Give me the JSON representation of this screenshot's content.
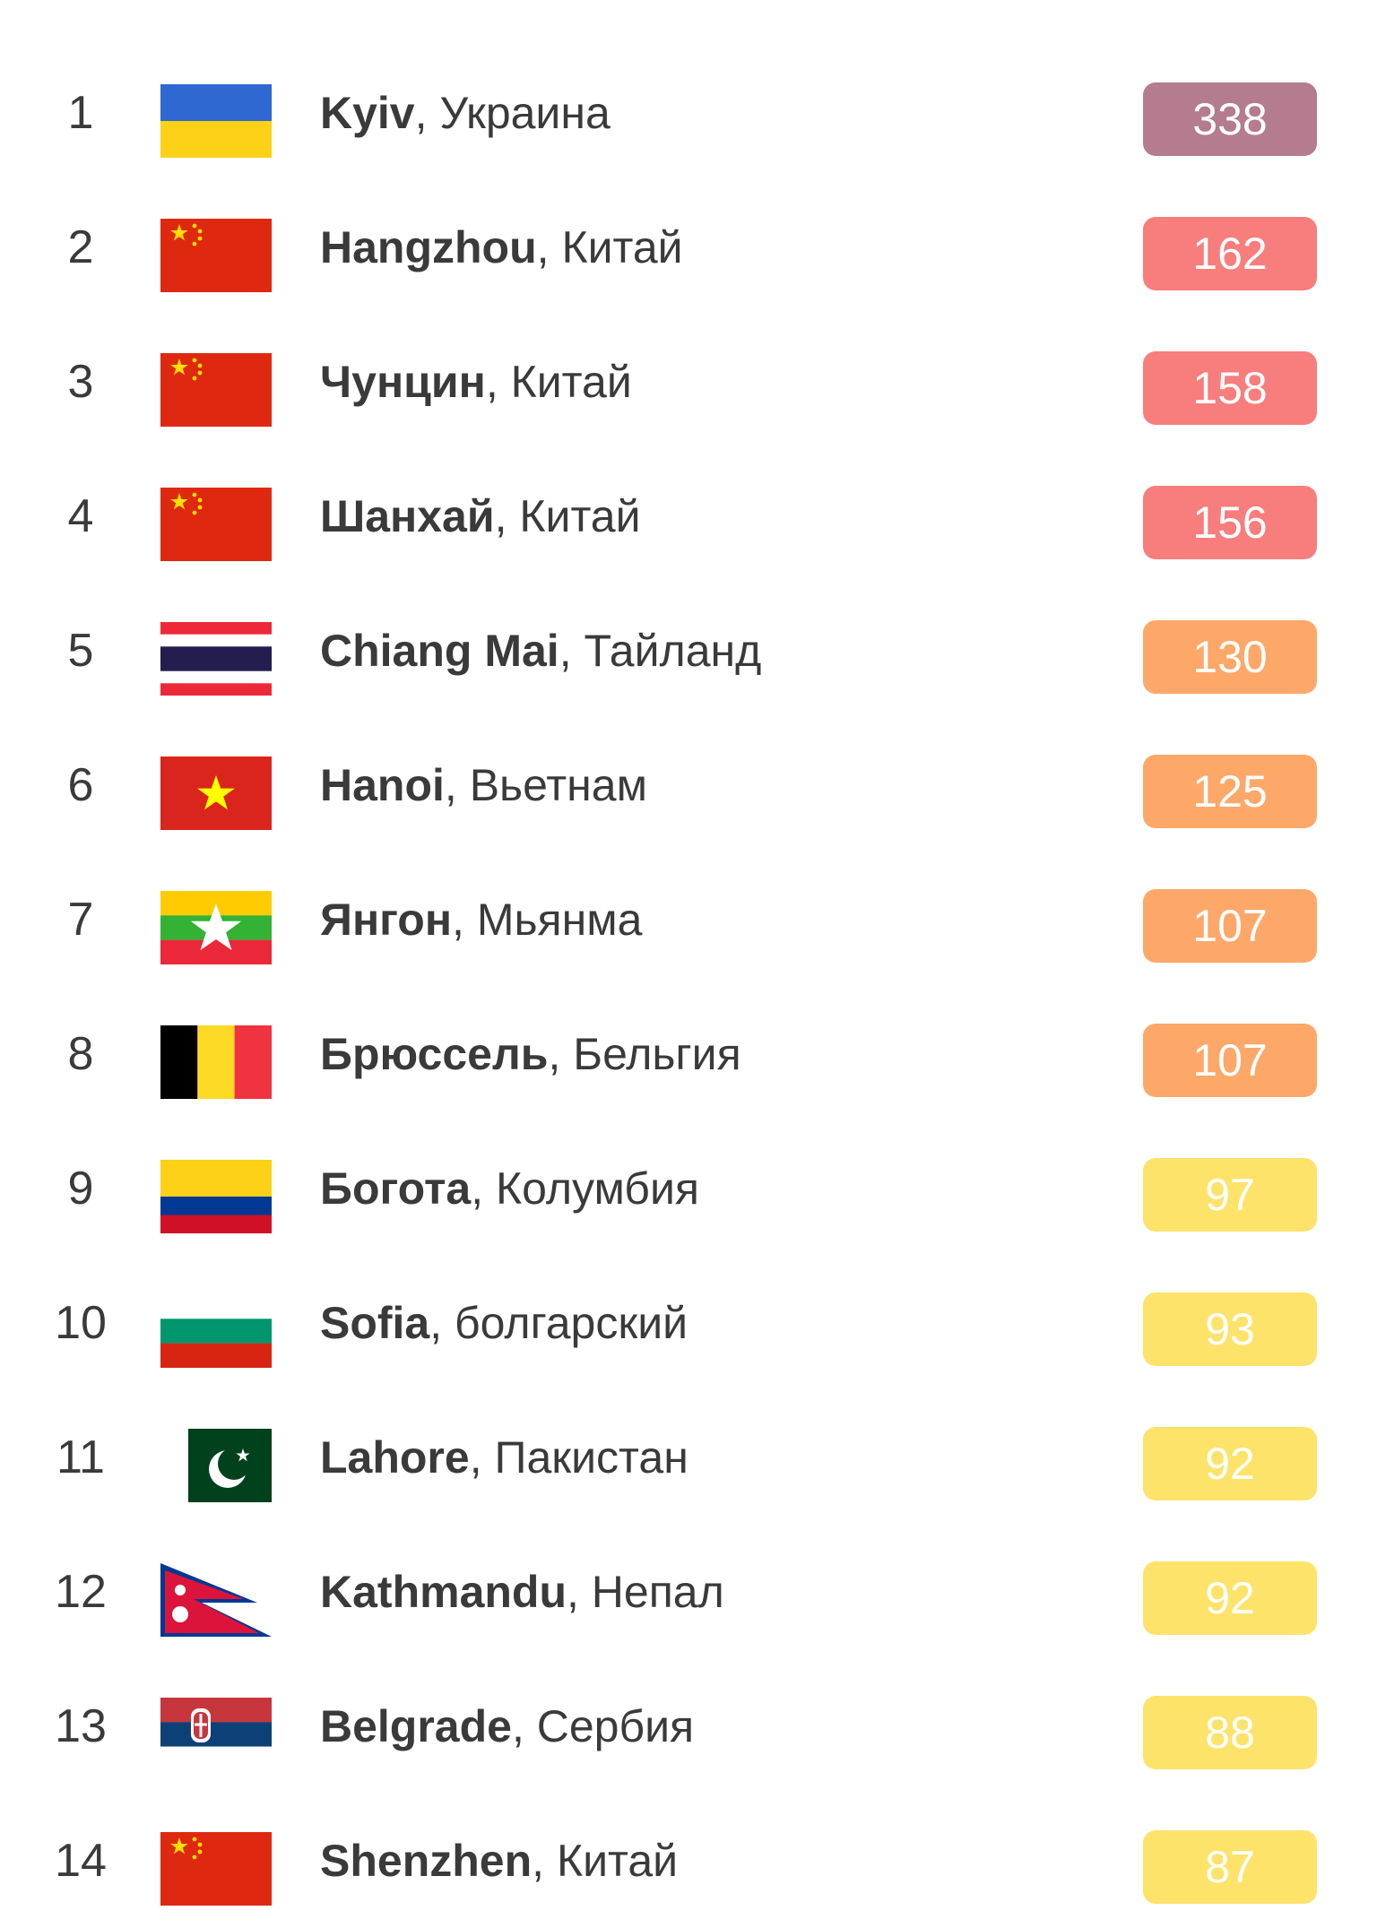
{
  "rows": [
    {
      "rank": "1",
      "city": "Kyiv",
      "country": "Украина",
      "aqi": "338",
      "color": "#b47c8e",
      "flag": "ukraine"
    },
    {
      "rank": "2",
      "city": "Hangzhou",
      "country": "Китай",
      "aqi": "162",
      "color": "#f87d7d",
      "flag": "china"
    },
    {
      "rank": "3",
      "city": "Чунцин",
      "country": "Китай",
      "aqi": "158",
      "color": "#f87d7d",
      "flag": "china"
    },
    {
      "rank": "4",
      "city": "Шанхай",
      "country": "Китай",
      "aqi": "156",
      "color": "#f87d7d",
      "flag": "china"
    },
    {
      "rank": "5",
      "city": "Chiang Mai",
      "country": "Тайланд",
      "aqi": "130",
      "color": "#fda869",
      "flag": "thailand"
    },
    {
      "rank": "6",
      "city": "Hanoi",
      "country": "Вьетнам",
      "aqi": "125",
      "color": "#fda869",
      "flag": "vietnam"
    },
    {
      "rank": "7",
      "city": "Янгон",
      "country": "Мьянма",
      "aqi": "107",
      "color": "#fda869",
      "flag": "myanmar"
    },
    {
      "rank": "8",
      "city": "Брюссель",
      "country": "Бельгия",
      "aqi": "107",
      "color": "#fda869",
      "flag": "belgium"
    },
    {
      "rank": "9",
      "city": "Богота",
      "country": "Колумбия",
      "aqi": "97",
      "color": "#fde36a",
      "flag": "colombia"
    },
    {
      "rank": "10",
      "city": "Sofia",
      "country": "болгарский",
      "aqi": "93",
      "color": "#fde36a",
      "flag": "bulgaria"
    },
    {
      "rank": "11",
      "city": "Lahore",
      "country": "Пакистан",
      "aqi": "92",
      "color": "#fde36a",
      "flag": "pakistan"
    },
    {
      "rank": "12",
      "city": "Kathmandu",
      "country": "Непал",
      "aqi": "92",
      "color": "#fde36a",
      "flag": "nepal"
    },
    {
      "rank": "13",
      "city": "Belgrade",
      "country": "Сербия",
      "aqi": "88",
      "color": "#fde36a",
      "flag": "serbia"
    },
    {
      "rank": "14",
      "city": "Shenzhen",
      "country": "Китай",
      "aqi": "87",
      "color": "#fde36a",
      "flag": "china"
    }
  ]
}
